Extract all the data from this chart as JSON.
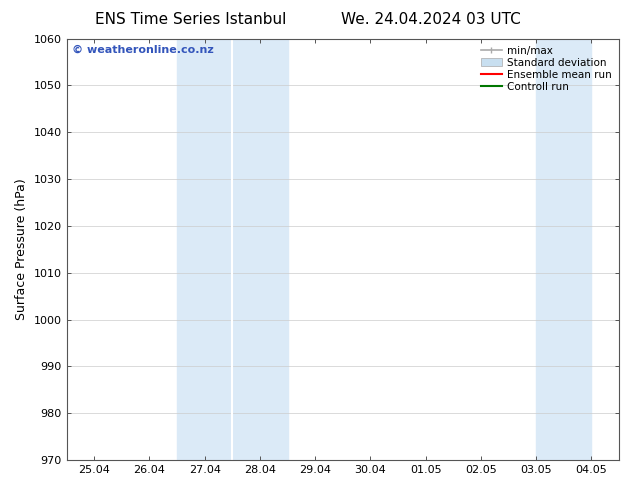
{
  "title_left": "ENS Time Series Istanbul",
  "title_right": "We. 24.04.2024 03 UTC",
  "ylabel": "Surface Pressure (hPa)",
  "ylim": [
    970,
    1060
  ],
  "yticks": [
    970,
    980,
    990,
    1000,
    1010,
    1020,
    1030,
    1040,
    1050,
    1060
  ],
  "xtick_labels": [
    "25.04",
    "26.04",
    "27.04",
    "28.04",
    "29.04",
    "30.04",
    "01.05",
    "02.05",
    "03.05",
    "04.05"
  ],
  "xtick_positions": [
    1,
    2,
    3,
    4,
    5,
    6,
    7,
    8,
    9,
    10
  ],
  "xlim": [
    0.5,
    10.5
  ],
  "shaded_regions": [
    {
      "x_start": 2.5,
      "x_end": 3.5
    },
    {
      "x_start": 3.5,
      "x_end": 4.5
    },
    {
      "x_start": 9.0,
      "x_end": 10.0
    }
  ],
  "shaded_color": "#dbeaf7",
  "divider_positions": [
    3.5
  ],
  "background_color": "#ffffff",
  "watermark_text": "© weatheronline.co.nz",
  "watermark_color": "#3355bb",
  "legend_minmax_color": "#aaaaaa",
  "legend_std_color": "#c8dff0",
  "legend_ens_color": "#ff0000",
  "legend_ctrl_color": "#007700",
  "title_fontsize": 11,
  "axis_label_fontsize": 9,
  "tick_fontsize": 8,
  "legend_fontsize": 7.5
}
